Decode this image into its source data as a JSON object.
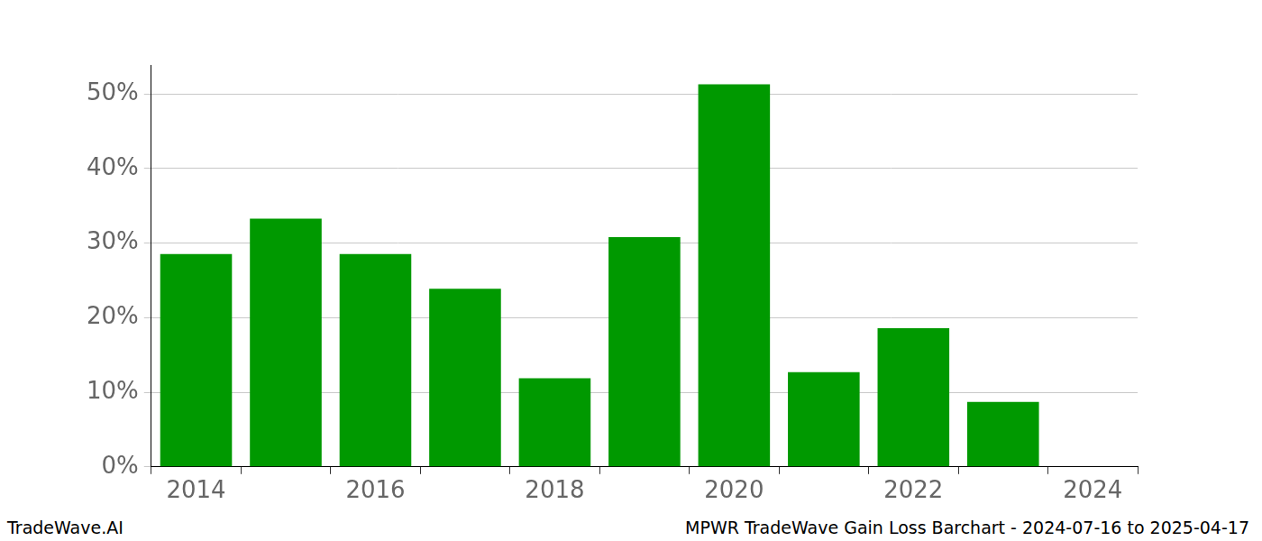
{
  "chart_data": {
    "type": "bar",
    "title": "MPWR TradeWave Gain Loss Barchart - 2024-07-16 to 2025-04-17",
    "source": "TradeWave.AI",
    "categories": [
      "2014",
      null,
      "2016",
      null,
      "2018",
      null,
      "2020",
      null,
      "2022",
      null,
      "2024"
    ],
    "values": [
      28.55,
      33.3,
      28.55,
      23.9,
      11.9,
      30.8,
      51.3,
      12.7,
      18.6,
      8.7,
      null
    ],
    "color": "#009900",
    "ylim": [
      0,
      53.9
    ],
    "yticks": [
      {
        "value": 0,
        "label": "0%"
      },
      {
        "value": 10,
        "label": "10%"
      },
      {
        "value": 20,
        "label": "20%"
      },
      {
        "value": 30,
        "label": "30%"
      },
      {
        "value": 40,
        "label": "40%"
      },
      {
        "value": 50,
        "label": "50%"
      }
    ],
    "grid": true
  }
}
